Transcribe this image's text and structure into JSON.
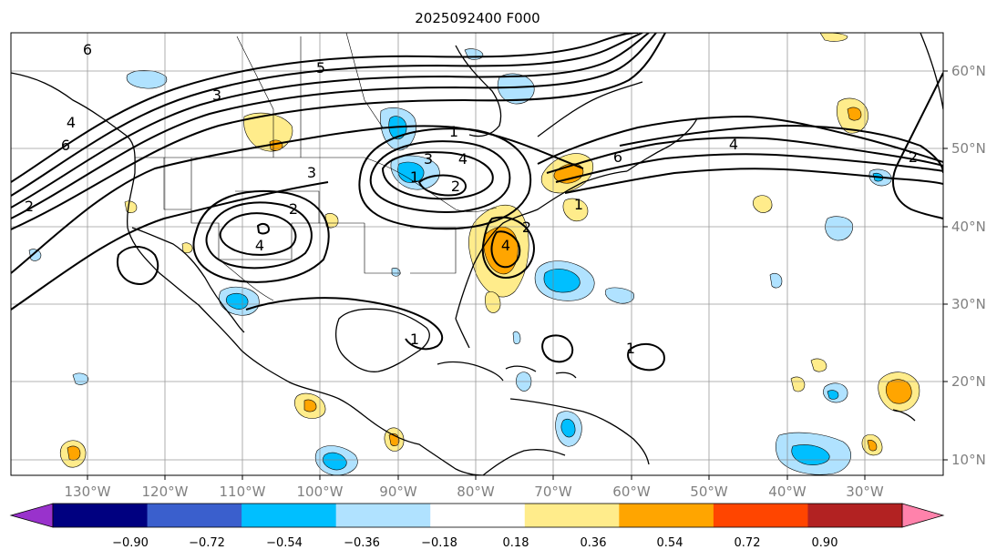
{
  "title": "2025092400 F000",
  "map": {
    "lon_labels": [
      "130°W",
      "120°W",
      "110°W",
      "100°W",
      "90°W",
      "80°W",
      "70°W",
      "60°W",
      "50°W",
      "40°W",
      "30°W"
    ],
    "lat_labels": [
      "60°N",
      "50°N",
      "40°N",
      "30°N",
      "20°N",
      "10°N"
    ],
    "contour_labels": [
      "6",
      "5",
      "3",
      "4",
      "6",
      "2",
      "1",
      "1",
      "3",
      "4",
      "3",
      "2",
      "4",
      "4",
      "2",
      "1",
      "6",
      "4",
      "2",
      "1",
      "1",
      "2"
    ]
  },
  "colorbar": {
    "colors": [
      "#9932cc",
      "#000080",
      "#3a5fcd",
      "#00bfff",
      "#b0e2ff",
      "#ffffff",
      "#ffec8b",
      "#ffa500",
      "#ff4500",
      "#b22222",
      "#ff82ab"
    ],
    "tick_labels": [
      "−0.90",
      "−0.72",
      "−0.54",
      "−0.36",
      "−0.18",
      "0.18",
      "0.36",
      "0.54",
      "0.72",
      "0.90"
    ]
  }
}
